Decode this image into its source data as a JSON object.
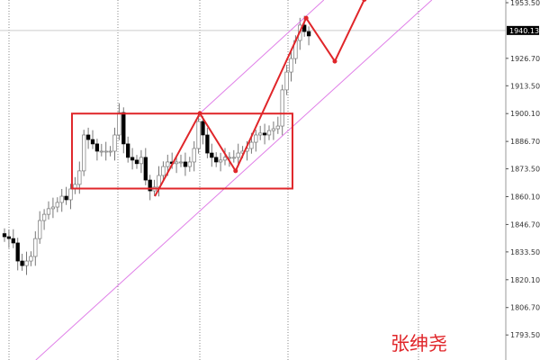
{
  "chart_data": {
    "type": "candlestick",
    "title": "",
    "y_ticks": [
      "1953.50",
      "1926.70",
      "1913.50",
      "1900.10",
      "1886.70",
      "1873.50",
      "1860.10",
      "1846.70",
      "1833.50",
      "1820.10",
      "1806.70",
      "1793.50"
    ],
    "ylim": [
      1790,
      1955
    ],
    "current_price": "1940.13",
    "grid": "vertical-dashed",
    "closes": [
      1840.8,
      1839.9,
      1837.8,
      1829.1,
      1826.9,
      1829.1,
      1831.3,
      1839.9,
      1848.6,
      1851.6,
      1854.3,
      1855.1,
      1857.3,
      1860.3,
      1858.6,
      1863.8,
      1866.0,
      1872.5,
      1889.8,
      1887.6,
      1885.5,
      1882.0,
      1882.0,
      1882.0,
      1882.0,
      1889.8,
      1900.6,
      1885.5,
      1879.0,
      1877.7,
      1876.0,
      1879.0,
      1868.1,
      1862.9,
      1864.7,
      1870.3,
      1874.6,
      1876.8,
      1876.0,
      1876.8,
      1876.8,
      1874.6,
      1876.8,
      1883.3,
      1896.3,
      1889.8,
      1881.1,
      1879.0,
      1876.8,
      1877.7,
      1879.0,
      1879.0,
      1879.0,
      1881.1,
      1882.0,
      1883.3,
      1886.3,
      1889.8,
      1890.7,
      1889.8,
      1891.9,
      1892.8,
      1894.1,
      1911.5,
      1920.1,
      1926.6,
      1935.3,
      1942.7,
      1939.6,
      1937.5
    ],
    "colors": {
      "bull": "#ffffff",
      "bear": "#000000",
      "drawing": "#e0262a",
      "channel": "#e080e8",
      "price_line": "#cccccc"
    },
    "drawings": {
      "rectangle": {
        "bar_from": 15.3,
        "bar_to": 65.3,
        "price_top": 1900.1,
        "price_bottom": 1864.0
      },
      "zigzag": [
        {
          "bar": 34.1,
          "price": 1860.3
        },
        {
          "bar": 44.3,
          "price": 1900.2
        },
        {
          "bar": 52.4,
          "price": 1872.5
        },
        {
          "bar": 68.4,
          "price": 1946.1
        },
        {
          "bar": 74.9,
          "price": 1925.3
        },
        {
          "bar": 81.6,
          "price": 1955.0
        }
      ],
      "channel_lower": [
        {
          "bar": 7.1,
          "price": 1781.4
        },
        {
          "bar": 96.9,
          "price": 1954.8
        }
      ],
      "channel_upper": [
        {
          "bar": 44.3,
          "price": 1900.2
        },
        {
          "bar": 72.4,
          "price": 1954.8
        }
      ]
    }
  },
  "watermark": "张绅尧"
}
